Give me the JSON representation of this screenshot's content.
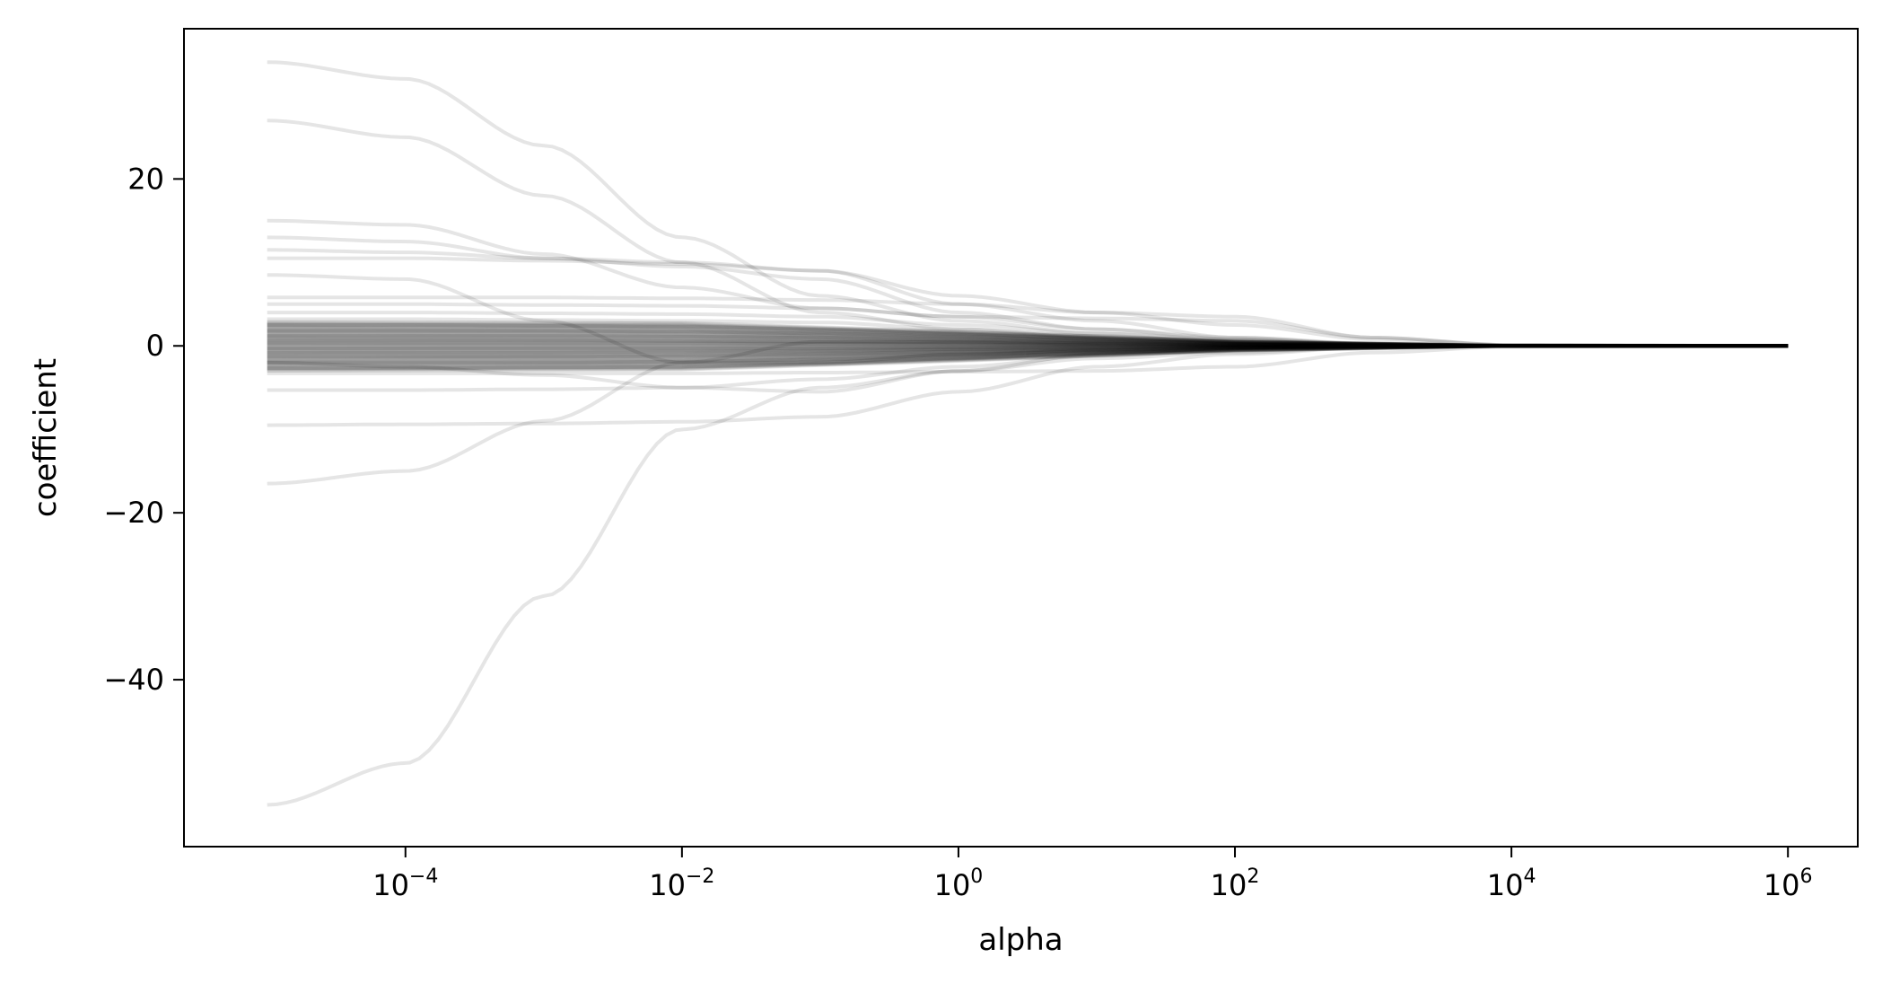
{
  "chart_data": {
    "type": "line",
    "title": "",
    "xlabel": "alpha",
    "ylabel": "coefficient",
    "xscale": "log",
    "xlim": [
      2.5e-06,
      3200000.0
    ],
    "ylim": [
      -60,
      38
    ],
    "x_range": [
      1e-05,
      1000000.0
    ],
    "grid": false,
    "legend": "none",
    "line_color": "#000000",
    "line_opacity": 0.1,
    "xticks": [
      {
        "base": "10",
        "exp": "−4",
        "value": 0.0001
      },
      {
        "base": "10",
        "exp": "−2",
        "value": 0.01
      },
      {
        "base": "10",
        "exp": "0",
        "value": 1
      },
      {
        "base": "10",
        "exp": "2",
        "value": 100
      },
      {
        "base": "10",
        "exp": "4",
        "value": 10000
      },
      {
        "base": "10",
        "exp": "6",
        "value": 1000000
      }
    ],
    "yticks": [
      {
        "label": "20",
        "value": 20
      },
      {
        "label": "0",
        "value": 0
      },
      {
        "label": "−20",
        "value": -20
      },
      {
        "label": "−40",
        "value": -40
      }
    ],
    "series": [
      {
        "points": [
          [
            1e-05,
            34
          ],
          [
            0.0001,
            32
          ],
          [
            0.001,
            24
          ],
          [
            0.01,
            13
          ],
          [
            0.1,
            6
          ],
          [
            1,
            3
          ],
          [
            10,
            1.5
          ],
          [
            100,
            0.8
          ],
          [
            1000,
            0.3
          ],
          [
            10000,
            0.05
          ],
          [
            1000000.0,
            0
          ]
        ]
      },
      {
        "points": [
          [
            1e-05,
            27
          ],
          [
            0.0001,
            25
          ],
          [
            0.001,
            18
          ],
          [
            0.01,
            10
          ],
          [
            0.1,
            4
          ],
          [
            1,
            2
          ],
          [
            10,
            1
          ],
          [
            100,
            0.5
          ],
          [
            1000,
            0.2
          ],
          [
            10000,
            0.04
          ],
          [
            1000000.0,
            0
          ]
        ]
      },
      {
        "points": [
          [
            1e-05,
            15
          ],
          [
            0.0001,
            14.5
          ],
          [
            0.001,
            11
          ],
          [
            0.01,
            7
          ],
          [
            0.1,
            4.5
          ],
          [
            1,
            3.5
          ],
          [
            10,
            3.3
          ],
          [
            100,
            3
          ],
          [
            1000,
            1
          ],
          [
            10000,
            0.1
          ],
          [
            1000000.0,
            0
          ]
        ]
      },
      {
        "points": [
          [
            1e-05,
            13
          ],
          [
            0.0001,
            12.5
          ],
          [
            0.001,
            10.5
          ],
          [
            0.01,
            9.5
          ],
          [
            0.1,
            8
          ],
          [
            1,
            4
          ],
          [
            10,
            2
          ],
          [
            100,
            0.8
          ],
          [
            1000,
            0.2
          ],
          [
            10000,
            0.03
          ],
          [
            1000000.0,
            0
          ]
        ]
      },
      {
        "points": [
          [
            1e-05,
            11.5
          ],
          [
            0.0001,
            11.2
          ],
          [
            0.001,
            10.5
          ],
          [
            0.01,
            10
          ],
          [
            0.1,
            9
          ],
          [
            1,
            5
          ],
          [
            10,
            3
          ],
          [
            100,
            1
          ],
          [
            1000,
            0.2
          ],
          [
            10000,
            0.03
          ],
          [
            1000000.0,
            0
          ]
        ]
      },
      {
        "points": [
          [
            1e-05,
            10.5
          ],
          [
            0.0001,
            10.5
          ],
          [
            0.001,
            10.2
          ],
          [
            0.01,
            9.8
          ],
          [
            0.1,
            9
          ],
          [
            1,
            6
          ],
          [
            10,
            4
          ],
          [
            100,
            3.5
          ],
          [
            1000,
            1
          ],
          [
            10000,
            0.1
          ],
          [
            1000000.0,
            0
          ]
        ]
      },
      {
        "points": [
          [
            1e-05,
            8.5
          ],
          [
            0.0001,
            8
          ],
          [
            0.001,
            3
          ],
          [
            0.01,
            -2
          ],
          [
            0.1,
            -2
          ],
          [
            1,
            -1
          ],
          [
            10,
            -0.5
          ],
          [
            100,
            -0.2
          ],
          [
            1000,
            -0.05
          ],
          [
            10000,
            0
          ],
          [
            1000000.0,
            0
          ]
        ]
      },
      {
        "points": [
          [
            1e-05,
            5.8
          ],
          [
            0.0001,
            5.8
          ],
          [
            0.001,
            5.8
          ],
          [
            0.01,
            5.7
          ],
          [
            0.1,
            5.5
          ],
          [
            1,
            5
          ],
          [
            10,
            4
          ],
          [
            100,
            2.5
          ],
          [
            1000,
            0.8
          ],
          [
            10000,
            0.1
          ],
          [
            1000000.0,
            0
          ]
        ]
      },
      {
        "points": [
          [
            1e-05,
            5
          ],
          [
            0.0001,
            5
          ],
          [
            0.001,
            4.9
          ],
          [
            0.01,
            4.8
          ],
          [
            0.1,
            4.5
          ],
          [
            1,
            3.5
          ],
          [
            10,
            2
          ],
          [
            100,
            1
          ],
          [
            1000,
            0.3
          ],
          [
            10000,
            0.03
          ],
          [
            1000000.0,
            0
          ]
        ]
      },
      {
        "points": [
          [
            1e-05,
            4
          ],
          [
            0.0001,
            4
          ],
          [
            0.001,
            3.9
          ],
          [
            0.01,
            3.8
          ],
          [
            0.1,
            3.5
          ],
          [
            1,
            2.5
          ],
          [
            10,
            1.5
          ],
          [
            100,
            0.6
          ],
          [
            1000,
            0.2
          ],
          [
            10000,
            0.02
          ],
          [
            1000000.0,
            0
          ]
        ]
      },
      {
        "points": [
          [
            1e-05,
            3.2
          ],
          [
            0.0001,
            3.2
          ],
          [
            0.001,
            3.1
          ],
          [
            0.01,
            3
          ],
          [
            0.1,
            2.8
          ],
          [
            1,
            2
          ],
          [
            10,
            1.2
          ],
          [
            100,
            0.5
          ],
          [
            1000,
            0.1
          ],
          [
            10000,
            0.01
          ],
          [
            1000000.0,
            0
          ]
        ]
      },
      {
        "points": [
          [
            1e-05,
            2.5
          ],
          [
            0.0001,
            2.5
          ],
          [
            0.001,
            2.4
          ],
          [
            0.01,
            2.3
          ],
          [
            0.1,
            2
          ],
          [
            1,
            1.5
          ],
          [
            10,
            0.8
          ],
          [
            100,
            0.3
          ],
          [
            1000,
            0.08
          ],
          [
            10000,
            0.01
          ],
          [
            1000000.0,
            0
          ]
        ]
      },
      {
        "points": [
          [
            1e-05,
            1.8
          ],
          [
            0.0001,
            1.8
          ],
          [
            0.001,
            1.8
          ],
          [
            0.01,
            1.7
          ],
          [
            0.1,
            1.5
          ],
          [
            1,
            1.1
          ],
          [
            10,
            0.6
          ],
          [
            100,
            0.2
          ],
          [
            1000,
            0.05
          ],
          [
            10000,
            0.01
          ],
          [
            1000000.0,
            0
          ]
        ]
      },
      {
        "points": [
          [
            1e-05,
            1.2
          ],
          [
            0.0001,
            1.2
          ],
          [
            0.001,
            1.2
          ],
          [
            0.01,
            1.1
          ],
          [
            0.1,
            1
          ],
          [
            1,
            0.7
          ],
          [
            10,
            0.4
          ],
          [
            100,
            0.15
          ],
          [
            1000,
            0.04
          ],
          [
            10000,
            0
          ],
          [
            1000000.0,
            0
          ]
        ]
      },
      {
        "points": [
          [
            1e-05,
            0.7
          ],
          [
            0.0001,
            0.7
          ],
          [
            0.001,
            0.7
          ],
          [
            0.01,
            0.6
          ],
          [
            0.1,
            0.5
          ],
          [
            1,
            0.4
          ],
          [
            10,
            0.2
          ],
          [
            100,
            0.08
          ],
          [
            1000,
            0.02
          ],
          [
            10000,
            0
          ],
          [
            1000000.0,
            0
          ]
        ]
      },
      {
        "points": [
          [
            1e-05,
            0.3
          ],
          [
            0.0001,
            0.3
          ],
          [
            0.001,
            0.3
          ],
          [
            0.01,
            0.3
          ],
          [
            0.1,
            0.25
          ],
          [
            1,
            0.2
          ],
          [
            10,
            0.1
          ],
          [
            100,
            0.04
          ],
          [
            1000,
            0.01
          ],
          [
            10000,
            0
          ],
          [
            1000000.0,
            0
          ]
        ]
      },
      {
        "points": [
          [
            1e-05,
            -0.3
          ],
          [
            0.0001,
            -0.3
          ],
          [
            0.001,
            -0.3
          ],
          [
            0.01,
            -0.3
          ],
          [
            0.1,
            -0.25
          ],
          [
            1,
            -0.2
          ],
          [
            10,
            -0.1
          ],
          [
            100,
            -0.04
          ],
          [
            1000,
            -0.01
          ],
          [
            10000,
            0
          ],
          [
            1000000.0,
            0
          ]
        ]
      },
      {
        "points": [
          [
            1e-05,
            -0.8
          ],
          [
            0.0001,
            -0.8
          ],
          [
            0.001,
            -0.8
          ],
          [
            0.01,
            -0.7
          ],
          [
            0.1,
            -0.6
          ],
          [
            1,
            -0.4
          ],
          [
            10,
            -0.2
          ],
          [
            100,
            -0.08
          ],
          [
            1000,
            -0.02
          ],
          [
            10000,
            0
          ],
          [
            1000000.0,
            0
          ]
        ]
      },
      {
        "points": [
          [
            1e-05,
            -1.3
          ],
          [
            0.0001,
            -1.3
          ],
          [
            0.001,
            -1.3
          ],
          [
            0.01,
            -1.2
          ],
          [
            0.1,
            -1
          ],
          [
            1,
            -0.7
          ],
          [
            10,
            -0.4
          ],
          [
            100,
            -0.15
          ],
          [
            1000,
            -0.04
          ],
          [
            10000,
            0
          ],
          [
            1000000.0,
            0
          ]
        ]
      },
      {
        "points": [
          [
            1e-05,
            -2
          ],
          [
            0.0001,
            -2
          ],
          [
            0.001,
            -2
          ],
          [
            0.01,
            -1.9
          ],
          [
            0.1,
            -1.6
          ],
          [
            1,
            -1.1
          ],
          [
            10,
            -0.6
          ],
          [
            100,
            -0.2
          ],
          [
            1000,
            -0.05
          ],
          [
            10000,
            -0.01
          ],
          [
            1000000.0,
            0
          ]
        ]
      },
      {
        "points": [
          [
            1e-05,
            -2.7
          ],
          [
            0.0001,
            -2.7
          ],
          [
            0.001,
            -2.6
          ],
          [
            0.01,
            -2.5
          ],
          [
            0.1,
            -2.2
          ],
          [
            1,
            -1.5
          ],
          [
            10,
            -0.8
          ],
          [
            100,
            -0.3
          ],
          [
            1000,
            -0.08
          ],
          [
            10000,
            -0.01
          ],
          [
            1000000.0,
            0
          ]
        ]
      },
      {
        "points": [
          [
            1e-05,
            -3.3
          ],
          [
            0.0001,
            -3.3
          ],
          [
            0.001,
            -3.3
          ],
          [
            0.01,
            -3.3
          ],
          [
            0.1,
            -3.2
          ],
          [
            1,
            -3.1
          ],
          [
            10,
            -3
          ],
          [
            100,
            -2.5
          ],
          [
            1000,
            -0.8
          ],
          [
            10000,
            -0.1
          ],
          [
            1000000.0,
            0
          ]
        ]
      },
      {
        "points": [
          [
            1e-05,
            -5.3
          ],
          [
            0.0001,
            -5.3
          ],
          [
            0.001,
            -5.2
          ],
          [
            0.01,
            -5
          ],
          [
            0.1,
            -4
          ],
          [
            1,
            -2.5
          ],
          [
            10,
            -1.2
          ],
          [
            100,
            -0.5
          ],
          [
            1000,
            -0.1
          ],
          [
            10000,
            -0.02
          ],
          [
            1000000.0,
            0
          ]
        ]
      },
      {
        "points": [
          [
            1e-05,
            -2
          ],
          [
            0.0001,
            -2.5
          ],
          [
            0.001,
            -3.5
          ],
          [
            0.01,
            -5
          ],
          [
            0.1,
            -5.5
          ],
          [
            1,
            -3
          ],
          [
            10,
            -1
          ],
          [
            100,
            -0.3
          ],
          [
            1000,
            -0.08
          ],
          [
            10000,
            -0.01
          ],
          [
            1000000.0,
            0
          ]
        ]
      },
      {
        "points": [
          [
            1e-05,
            -9.5
          ],
          [
            0.0001,
            -9.4
          ],
          [
            0.001,
            -9.3
          ],
          [
            0.01,
            -9.1
          ],
          [
            0.1,
            -8.5
          ],
          [
            1,
            -5.5
          ],
          [
            10,
            -2.5
          ],
          [
            100,
            -1
          ],
          [
            1000,
            -0.2
          ],
          [
            10000,
            -0.03
          ],
          [
            1000000.0,
            0
          ]
        ]
      },
      {
        "points": [
          [
            1e-05,
            -16.5
          ],
          [
            0.0001,
            -15
          ],
          [
            0.001,
            -9
          ],
          [
            0.01,
            -2
          ],
          [
            0.1,
            0.5
          ],
          [
            1,
            0.5
          ],
          [
            10,
            0.3
          ],
          [
            100,
            0.1
          ],
          [
            1000,
            0.03
          ],
          [
            10000,
            0
          ],
          [
            1000000.0,
            0
          ]
        ]
      },
      {
        "points": [
          [
            1e-05,
            -55
          ],
          [
            0.0001,
            -50
          ],
          [
            0.001,
            -30
          ],
          [
            0.01,
            -10
          ],
          [
            0.1,
            -5
          ],
          [
            1,
            -3
          ],
          [
            10,
            -1.5
          ],
          [
            100,
            -0.8
          ],
          [
            1000,
            -0.2
          ],
          [
            10000,
            -0.03
          ],
          [
            1000000.0,
            0
          ]
        ]
      }
    ]
  }
}
